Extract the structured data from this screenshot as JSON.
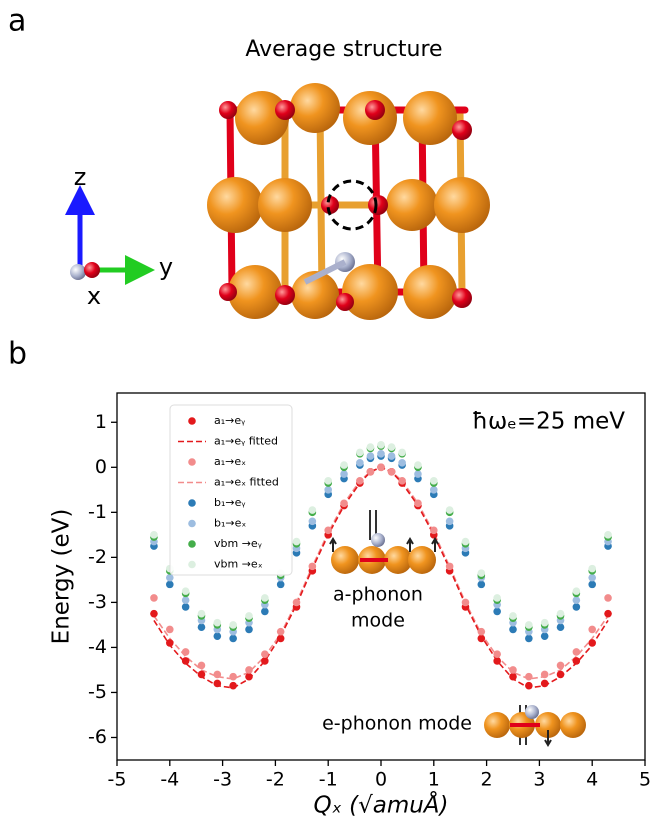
{
  "panel_labels": [
    "a",
    "b"
  ],
  "structure": {
    "title": "Average structure",
    "axes": {
      "z": "z",
      "y": "y",
      "x": "x"
    }
  },
  "chart_data": {
    "type": "scatter",
    "annotation": "ħωₑ=25 meV",
    "inset_labels": {
      "a_mode": [
        "a-phonon",
        "mode"
      ],
      "e_mode": "e-phonon mode"
    },
    "xlabel": "Qₓ (√amuÅ)",
    "ylabel": "Energy (eV)",
    "xlim": [
      -5,
      5
    ],
    "ylim": [
      -6.5,
      1.65
    ],
    "xticks": [
      -5,
      -4,
      -3,
      -2,
      -1,
      0,
      1,
      2,
      3,
      4,
      5
    ],
    "yticks": [
      -6,
      -5,
      -4,
      -3,
      -2,
      -1,
      0,
      1
    ],
    "x": [
      -4.3,
      -4.0,
      -3.7,
      -3.4,
      -3.1,
      -2.8,
      -2.5,
      -2.2,
      -1.9,
      -1.6,
      -1.3,
      -1.0,
      -0.7,
      -0.4,
      -0.2,
      0,
      0.2,
      0.4,
      0.7,
      1.0,
      1.3,
      1.6,
      1.9,
      2.2,
      2.5,
      2.8,
      3.1,
      3.4,
      3.7,
      4.0,
      4.3
    ],
    "series": [
      {
        "name": "a₁→eᵧ",
        "color": "#e3191c",
        "style": "dots",
        "values": [
          -3.25,
          -3.9,
          -4.3,
          -4.6,
          -4.8,
          -4.85,
          -4.65,
          -4.3,
          -3.8,
          -3.1,
          -2.3,
          -1.5,
          -0.85,
          -0.35,
          -0.1,
          0,
          -0.1,
          -0.35,
          -0.85,
          -1.5,
          -2.3,
          -3.1,
          -3.8,
          -4.3,
          -4.65,
          -4.85,
          -4.8,
          -4.6,
          -4.3,
          -3.9,
          -3.25
        ]
      },
      {
        "name": "a₁→eᵧ fitted",
        "color": "#e3191c",
        "style": "dashed",
        "values": [
          -3.4,
          -3.95,
          -4.35,
          -4.65,
          -4.85,
          -4.9,
          -4.7,
          -4.3,
          -3.75,
          -3.05,
          -2.25,
          -1.5,
          -0.85,
          -0.35,
          -0.1,
          0,
          -0.1,
          -0.35,
          -0.85,
          -1.5,
          -2.25,
          -3.05,
          -3.75,
          -4.3,
          -4.7,
          -4.9,
          -4.85,
          -4.65,
          -4.35,
          -3.95,
          -3.4
        ]
      },
      {
        "name": "a₁→eₓ",
        "color": "#f28c8c",
        "style": "dots",
        "values": [
          -2.9,
          -3.6,
          -4.1,
          -4.4,
          -4.6,
          -4.65,
          -4.5,
          -4.15,
          -3.65,
          -3.0,
          -2.2,
          -1.4,
          -0.8,
          -0.3,
          -0.1,
          0,
          -0.1,
          -0.3,
          -0.8,
          -1.4,
          -2.2,
          -3.0,
          -3.65,
          -4.15,
          -4.5,
          -4.65,
          -4.6,
          -4.4,
          -4.1,
          -3.6,
          -2.9
        ]
      },
      {
        "name": "a₁→eₓ fitted",
        "color": "#f28c8c",
        "style": "dashed",
        "values": [
          -3.3,
          -3.8,
          -4.2,
          -4.5,
          -4.65,
          -4.7,
          -4.55,
          -4.2,
          -3.7,
          -3.0,
          -2.2,
          -1.45,
          -0.8,
          -0.3,
          -0.1,
          0,
          -0.1,
          -0.3,
          -0.8,
          -1.45,
          -2.2,
          -3.0,
          -3.7,
          -4.2,
          -4.55,
          -4.7,
          -4.65,
          -4.5,
          -4.2,
          -3.8,
          -3.3
        ]
      },
      {
        "name": "b₁→eᵧ",
        "color": "#2c7bb6",
        "style": "dots",
        "values": [
          -1.75,
          -2.6,
          -3.1,
          -3.55,
          -3.75,
          -3.8,
          -3.6,
          -3.2,
          -2.6,
          -1.9,
          -1.3,
          -0.6,
          -0.25,
          0.05,
          0.2,
          0.25,
          0.2,
          0.05,
          -0.25,
          -0.6,
          -1.3,
          -1.9,
          -2.6,
          -3.2,
          -3.6,
          -3.8,
          -3.75,
          -3.55,
          -3.1,
          -2.6,
          -1.75
        ]
      },
      {
        "name": "b₁→eₓ",
        "color": "#9dbde0",
        "style": "dots",
        "values": [
          -1.65,
          -2.45,
          -2.95,
          -3.4,
          -3.6,
          -3.65,
          -3.45,
          -3.05,
          -2.45,
          -1.8,
          -1.2,
          -0.5,
          -0.15,
          0.1,
          0.25,
          0.3,
          0.25,
          0.1,
          -0.15,
          -0.5,
          -1.2,
          -1.8,
          -2.45,
          -3.05,
          -3.45,
          -3.65,
          -3.6,
          -3.4,
          -2.95,
          -2.45,
          -1.65
        ]
      },
      {
        "name": "vbm →eᵧ",
        "color": "#44ad4a",
        "style": "dots",
        "values": [
          -1.55,
          -2.3,
          -2.8,
          -3.3,
          -3.5,
          -3.55,
          -3.35,
          -2.95,
          -2.4,
          -1.7,
          -1.0,
          -0.35,
          0.0,
          0.3,
          0.42,
          0.47,
          0.42,
          0.3,
          0.0,
          -0.35,
          -1.0,
          -1.7,
          -2.4,
          -2.95,
          -3.35,
          -3.55,
          -3.5,
          -3.3,
          -2.8,
          -2.3,
          -1.55
        ]
      },
      {
        "name": "vbm →eₓ",
        "color": "#dcefe0",
        "style": "dots",
        "values": [
          -1.5,
          -2.25,
          -2.75,
          -3.25,
          -3.45,
          -3.5,
          -3.3,
          -2.9,
          -2.35,
          -1.65,
          -0.95,
          -0.3,
          0.05,
          0.33,
          0.45,
          0.5,
          0.45,
          0.33,
          0.05,
          -0.3,
          -0.95,
          -1.65,
          -2.35,
          -2.9,
          -3.3,
          -3.5,
          -3.45,
          -3.25,
          -2.75,
          -2.25,
          -1.5
        ]
      }
    ]
  }
}
